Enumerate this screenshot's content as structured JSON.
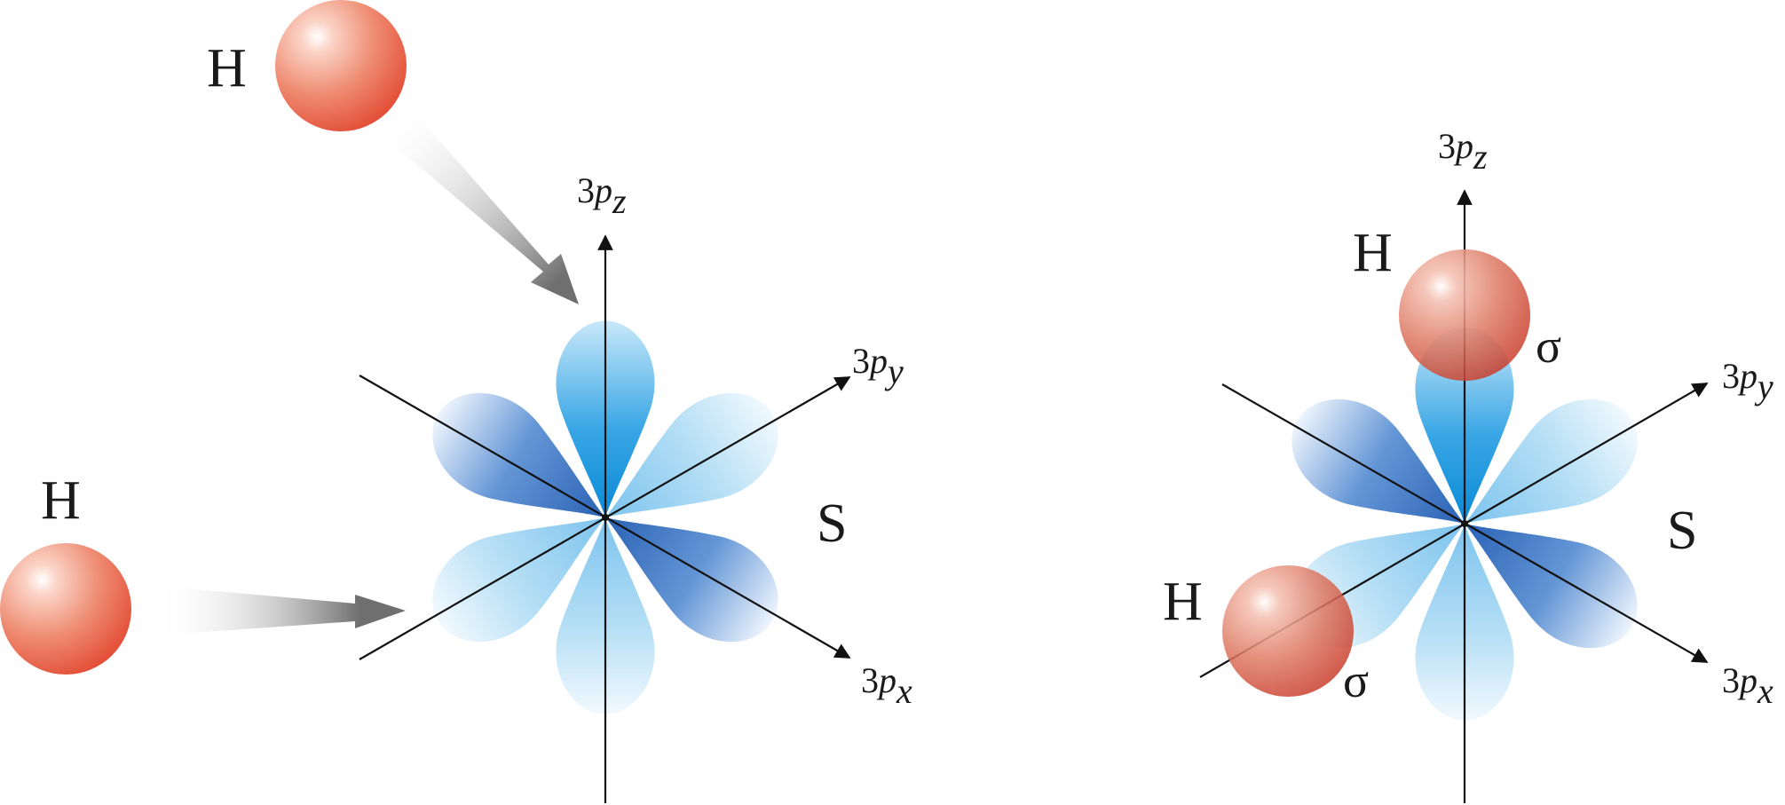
{
  "panels": [
    {
      "id": "before",
      "atom": "S",
      "hydrogens": [
        "H",
        "H"
      ],
      "axes": {
        "z": [
          "3",
          "p",
          "z"
        ],
        "y": [
          "3",
          "p",
          "y"
        ],
        "x": [
          "3",
          "p",
          "x"
        ]
      }
    },
    {
      "id": "after",
      "atom": "S",
      "hydrogens": [
        "H",
        "H"
      ],
      "bonds": [
        "σ",
        "σ"
      ],
      "axes": {
        "z": [
          "3",
          "p",
          "z"
        ],
        "y": [
          "3",
          "p",
          "y"
        ],
        "x": [
          "3",
          "p",
          "x"
        ]
      }
    }
  ],
  "colors": {
    "hydrogen": "#e34a33",
    "lobe_dark": "#3f78c4",
    "lobe_mid": "#1796dc",
    "lobe_light": "#a9d8f3",
    "approach_arrow": "#6f6f6f"
  }
}
